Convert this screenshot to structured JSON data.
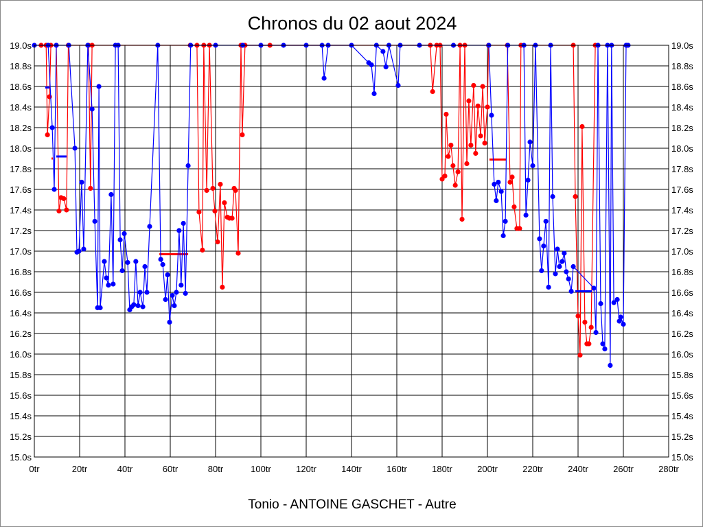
{
  "chart_data": {
    "type": "line",
    "title": "Chronos du 02 aout 2024",
    "xlabel": "Tonio - ANTOINE GASCHET - Autre",
    "ylabel": "",
    "xlim": [
      0,
      280
    ],
    "ylim": [
      15.0,
      19.0
    ],
    "grid": true,
    "x_ticks": [
      0,
      20,
      40,
      60,
      80,
      100,
      120,
      140,
      160,
      180,
      200,
      220,
      240,
      260,
      280
    ],
    "x_tick_labels": [
      "0tr",
      "20tr",
      "40tr",
      "60tr",
      "80tr",
      "100tr",
      "120tr",
      "140tr",
      "160tr",
      "180tr",
      "200tr",
      "220tr",
      "240tr",
      "260tr",
      "280tr"
    ],
    "y_ticks": [
      15.0,
      15.2,
      15.4,
      15.6,
      15.8,
      16.0,
      16.2,
      16.4,
      16.6,
      16.8,
      17.0,
      17.2,
      17.4,
      17.6,
      17.8,
      18.0,
      18.2,
      18.4,
      18.6,
      18.8,
      19.0
    ],
    "y_tick_labels": [
      "15.0s",
      "15.2s",
      "15.4s",
      "15.6s",
      "15.8s",
      "16.0s",
      "16.2s",
      "16.4s",
      "16.6s",
      "16.8s",
      "17.0s",
      "17.2s",
      "17.4s",
      "17.6s",
      "17.8s",
      "18.0s",
      "18.2s",
      "18.4s",
      "18.6s",
      "18.8s",
      "19.0s"
    ],
    "series": [
      {
        "name": "red",
        "color": "#ff0000",
        "points": [
          [
            3,
            19
          ],
          [
            5.2,
            19
          ],
          [
            5.8,
            18.13
          ],
          [
            6.7,
            18.5
          ],
          [
            7.3,
            19
          ],
          [
            9.7,
            19
          ],
          [
            10.9,
            17.39
          ],
          [
            11.8,
            17.52
          ],
          [
            13,
            17.51
          ],
          [
            14.2,
            17.4
          ],
          [
            15,
            19
          ],
          [
            23.9,
            19
          ],
          [
            24.8,
            17.61
          ],
          [
            25.5,
            19
          ],
          [
            68.8,
            19
          ],
          [
            71.8,
            19
          ],
          [
            72.7,
            17.38
          ],
          [
            74.2,
            17.01
          ],
          [
            74.8,
            19
          ],
          [
            76.1,
            17.59
          ],
          [
            77.3,
            19
          ],
          [
            78.8,
            17.61
          ],
          [
            79.7,
            17.39
          ],
          [
            80.9,
            17.09
          ],
          [
            82.1,
            17.65
          ],
          [
            83,
            16.65
          ],
          [
            83.9,
            17.47
          ],
          [
            85.2,
            17.33
          ],
          [
            86.1,
            17.32
          ],
          [
            87.3,
            17.32
          ],
          [
            88.2,
            17.61
          ],
          [
            88.8,
            17.59
          ],
          [
            90,
            16.98
          ],
          [
            91.2,
            19
          ],
          [
            91.8,
            18.13
          ],
          [
            93,
            19
          ],
          [
            104,
            19
          ],
          [
            174.8,
            19
          ],
          [
            175.8,
            18.55
          ],
          [
            177.6,
            19
          ],
          [
            179.1,
            19
          ],
          [
            180,
            17.7
          ],
          [
            181.2,
            17.73
          ],
          [
            181.8,
            18.33
          ],
          [
            182.7,
            17.92
          ],
          [
            183.9,
            18.03
          ],
          [
            184.8,
            17.83
          ],
          [
            185.8,
            17.64
          ],
          [
            187,
            17.77
          ],
          [
            187.9,
            19
          ],
          [
            188.8,
            17.31
          ],
          [
            190,
            19
          ],
          [
            190.9,
            17.85
          ],
          [
            191.8,
            18.46
          ],
          [
            192.7,
            18.03
          ],
          [
            193.9,
            18.61
          ],
          [
            194.8,
            17.95
          ],
          [
            195.8,
            18.41
          ],
          [
            197,
            18.12
          ],
          [
            197.9,
            18.6
          ],
          [
            198.8,
            18.05
          ],
          [
            200,
            18.4
          ],
          [
            200.5,
            19
          ],
          [
            208.8,
            19
          ],
          [
            210,
            17.67
          ],
          [
            210.9,
            17.72
          ],
          [
            211.8,
            17.43
          ],
          [
            213,
            17.22
          ],
          [
            214.2,
            17.22
          ],
          [
            214.8,
            19
          ],
          [
            237.9,
            19
          ],
          [
            238.8,
            17.53
          ],
          [
            240,
            16.37
          ],
          [
            240.9,
            15.99
          ],
          [
            241.8,
            18.21
          ],
          [
            243,
            16.31
          ],
          [
            243.9,
            16.1
          ],
          [
            244.8,
            16.1
          ],
          [
            245.8,
            16.26
          ],
          [
            247.6,
            19
          ],
          [
            261.5,
            19
          ]
        ],
        "averages": [
          [
            7.6,
            8.2,
            17.9
          ],
          [
            55.2,
            67.9,
            16.97
          ],
          [
            200.9,
            208.2,
            17.89
          ]
        ]
      },
      {
        "name": "blue",
        "color": "#0000ff",
        "points": [
          [
            0,
            19
          ],
          [
            6.1,
            19
          ],
          [
            7.9,
            18.2
          ],
          [
            8.8,
            17.6
          ],
          [
            9.7,
            19
          ],
          [
            15.2,
            19
          ],
          [
            17.9,
            18.0
          ],
          [
            18.8,
            16.99
          ],
          [
            19.7,
            17.0
          ],
          [
            20.9,
            17.67
          ],
          [
            21.8,
            17.02
          ],
          [
            23.6,
            19
          ],
          [
            25.5,
            18.38
          ],
          [
            26.7,
            17.29
          ],
          [
            27.9,
            16.45
          ],
          [
            28.5,
            18.6
          ],
          [
            29.1,
            16.45
          ],
          [
            30.9,
            16.9
          ],
          [
            31.8,
            16.74
          ],
          [
            32.7,
            16.67
          ],
          [
            33.9,
            17.55
          ],
          [
            34.8,
            16.68
          ],
          [
            35.8,
            19
          ],
          [
            37,
            19
          ],
          [
            37.9,
            17.11
          ],
          [
            38.8,
            16.81
          ],
          [
            39.7,
            17.17
          ],
          [
            41.2,
            16.89
          ],
          [
            42.1,
            16.43
          ],
          [
            43,
            16.46
          ],
          [
            43.9,
            16.48
          ],
          [
            44.8,
            16.9
          ],
          [
            45.8,
            16.47
          ],
          [
            46.7,
            16.6
          ],
          [
            47.9,
            16.46
          ],
          [
            48.8,
            16.85
          ],
          [
            49.7,
            16.6
          ],
          [
            50.9,
            17.24
          ],
          [
            54.5,
            19
          ],
          [
            55.8,
            16.92
          ],
          [
            56.7,
            16.87
          ],
          [
            57.9,
            16.53
          ],
          [
            58.8,
            16.77
          ],
          [
            59.7,
            16.31
          ],
          [
            60.9,
            16.57
          ],
          [
            61.8,
            16.47
          ],
          [
            62.7,
            16.6
          ],
          [
            63.9,
            17.2
          ],
          [
            64.8,
            16.67
          ],
          [
            65.8,
            17.27
          ],
          [
            66.7,
            16.59
          ],
          [
            67.9,
            17.83
          ],
          [
            69,
            19
          ],
          [
            80,
            19
          ],
          [
            92,
            19
          ],
          [
            100,
            19
          ],
          [
            110,
            19
          ],
          [
            120,
            19
          ],
          [
            127,
            19
          ],
          [
            127.9,
            18.68
          ],
          [
            129.7,
            19
          ],
          [
            140,
            19
          ],
          [
            147.6,
            18.83
          ],
          [
            148.8,
            18.81
          ],
          [
            150,
            18.53
          ],
          [
            151,
            19
          ],
          [
            153.9,
            18.94
          ],
          [
            155.2,
            18.79
          ],
          [
            156.5,
            19
          ],
          [
            160.6,
            18.61
          ],
          [
            161.5,
            19
          ],
          [
            170,
            19
          ],
          [
            185,
            19
          ],
          [
            200.6,
            19
          ],
          [
            201.8,
            18.32
          ],
          [
            203,
            17.65
          ],
          [
            203.9,
            17.49
          ],
          [
            204.8,
            17.67
          ],
          [
            206.1,
            17.58
          ],
          [
            207,
            17.15
          ],
          [
            207.9,
            17.29
          ],
          [
            209,
            19
          ],
          [
            216.1,
            19
          ],
          [
            217,
            17.35
          ],
          [
            217.9,
            17.69
          ],
          [
            218.8,
            18.06
          ],
          [
            220,
            17.83
          ],
          [
            221.2,
            19
          ],
          [
            223,
            17.12
          ],
          [
            223.9,
            16.81
          ],
          [
            224.8,
            17.05
          ],
          [
            225.8,
            17.29
          ],
          [
            227,
            16.65
          ],
          [
            227.9,
            19
          ],
          [
            228.8,
            17.53
          ],
          [
            230,
            16.78
          ],
          [
            230.9,
            17.02
          ],
          [
            231.8,
            16.85
          ],
          [
            233,
            16.9
          ],
          [
            233.9,
            16.98
          ],
          [
            234.8,
            16.8
          ],
          [
            235.8,
            16.73
          ],
          [
            237,
            16.61
          ],
          [
            237.9,
            16.85
          ],
          [
            247,
            16.64
          ],
          [
            247.9,
            16.21
          ],
          [
            248.8,
            19
          ],
          [
            250,
            16.49
          ],
          [
            250.9,
            16.1
          ],
          [
            251.8,
            16.05
          ],
          [
            253,
            19
          ],
          [
            254.2,
            15.89
          ],
          [
            254.8,
            19
          ],
          [
            255.8,
            16.5
          ],
          [
            257.3,
            16.53
          ],
          [
            258.2,
            16.32
          ],
          [
            258.8,
            16.36
          ],
          [
            260,
            16.29
          ],
          [
            261.2,
            19
          ],
          [
            262.1,
            19
          ]
        ],
        "averages": [
          [
            4.8,
            6.7,
            18.59
          ],
          [
            9.7,
            14.2,
            17.92
          ],
          [
            238.8,
            246.1,
            16.61
          ]
        ]
      }
    ]
  }
}
